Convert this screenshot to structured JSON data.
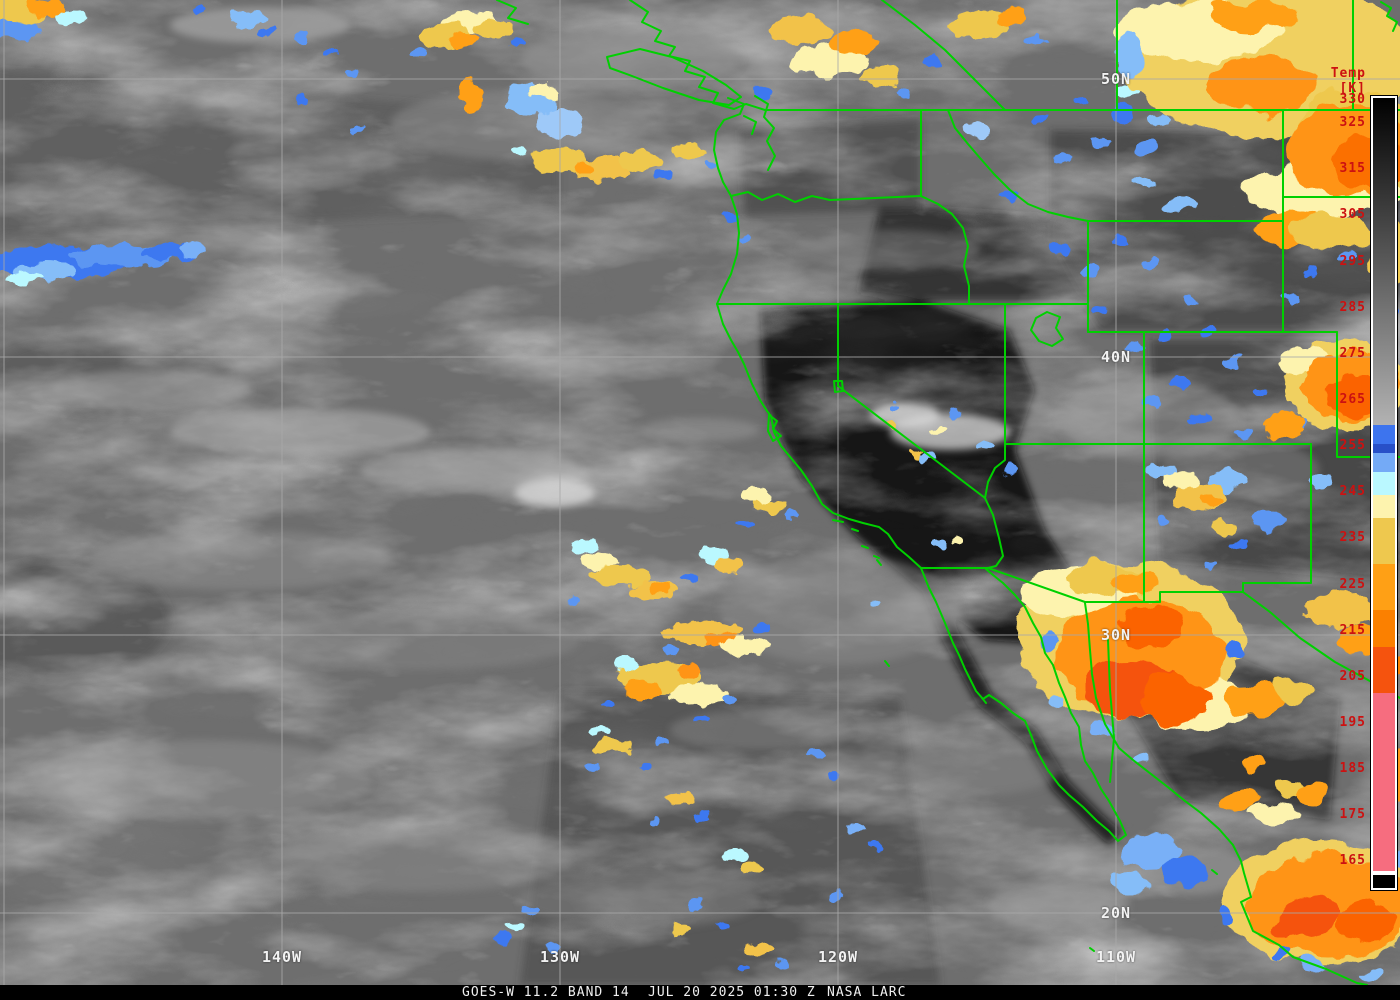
{
  "product": {
    "name": "GOES-W 11.2 BAND 14",
    "timestamp": "JUL 20 2025 01:30 Z",
    "credit": "NASA LARC"
  },
  "footer": {
    "bg": "#000000",
    "text_color": "#f0f0f0"
  },
  "map": {
    "border_color": "#00d000",
    "grid_color": "#a8a8a8",
    "label_color": "#f2f2f2",
    "grid_labels": {
      "lat": [
        {
          "label": "50N",
          "deg": 50
        },
        {
          "label": "40N",
          "deg": 40
        },
        {
          "label": "30N",
          "deg": 30
        },
        {
          "label": "20N",
          "deg": 20
        }
      ],
      "lon": [
        {
          "label": "",
          "deg": 150
        },
        {
          "label": "140W",
          "deg": 140
        },
        {
          "label": "130W",
          "deg": 130
        },
        {
          "label": "120W",
          "deg": 120
        },
        {
          "label": "110W",
          "deg": 110
        }
      ]
    }
  },
  "colorbar": {
    "title": "Temp [K]",
    "unit": "K",
    "text_color": "#cc1111",
    "range_k": [
      159,
      331
    ],
    "ticks": [
      330,
      325,
      315,
      305,
      295,
      285,
      275,
      265,
      255,
      245,
      235,
      225,
      215,
      205,
      195,
      185,
      175,
      165
    ],
    "segments": [
      {
        "from": 330.6,
        "to": 259.5,
        "gradient": true,
        "color_top": "#000000",
        "color_bottom": "#b2b2b2"
      },
      {
        "from": 259.5,
        "to": 255.5,
        "color": "#3d74ee"
      },
      {
        "from": 255.5,
        "to": 253.5,
        "color": "#2850c8"
      },
      {
        "from": 253.5,
        "to": 249.5,
        "color": "#74aaf6"
      },
      {
        "from": 249.5,
        "to": 244.5,
        "color": "#baf8ff"
      },
      {
        "from": 244.5,
        "to": 239.5,
        "color": "#fdf3ae"
      },
      {
        "from": 239.5,
        "to": 229.5,
        "color": "#eec84e"
      },
      {
        "from": 229.5,
        "to": 219.5,
        "color": "#ffa015"
      },
      {
        "from": 219.5,
        "to": 211.5,
        "color": "#fb8000"
      },
      {
        "from": 211.5,
        "to": 201.5,
        "color": "#f5530e"
      },
      {
        "from": 201.5,
        "to": 163.0,
        "color": "#f66d7f"
      },
      {
        "from": 163.0,
        "to": 162.0,
        "color": "#ffffff"
      },
      {
        "from": 162.0,
        "to": 159.2,
        "color": "#000000"
      }
    ]
  }
}
